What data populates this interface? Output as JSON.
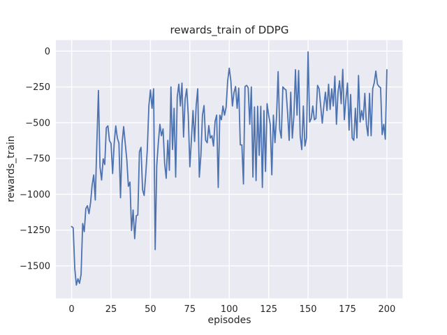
{
  "figure": {
    "background": "#ffffff"
  },
  "chart_data": {
    "type": "line",
    "title": "rewards_train of DDPG",
    "xlabel": "episodes",
    "ylabel": "rewards_train",
    "xlim": [
      -10,
      210
    ],
    "ylim": [
      -1727,
      77
    ],
    "x_ticks": [
      0,
      25,
      50,
      75,
      100,
      125,
      150,
      175,
      200
    ],
    "x_tick_labels": [
      "0",
      "25",
      "50",
      "75",
      "100",
      "125",
      "150",
      "175",
      "200"
    ],
    "y_ticks": [
      0,
      -250,
      -500,
      -750,
      -1000,
      -1250,
      -1500
    ],
    "y_tick_labels": [
      "0",
      "−250",
      "−500",
      "−750",
      "−1000",
      "−1250",
      "−1500"
    ],
    "grid": true,
    "legend": "none",
    "styles": {
      "line_color": "#4C72B0",
      "plot_bg": "#EAEAF2",
      "grid_color": "#ffffff",
      "text_color": "#262626"
    },
    "series": [
      {
        "name": "rewards_train",
        "x_start": 0,
        "x_step": 1,
        "values": [
          -1225,
          -1235,
          -1520,
          -1634,
          -1590,
          -1622,
          -1560,
          -1204,
          -1261,
          -1100,
          -1080,
          -1135,
          -1060,
          -935,
          -865,
          -1040,
          -640,
          -275,
          -808,
          -900,
          -752,
          -792,
          -535,
          -522,
          -625,
          -645,
          -855,
          -643,
          -522,
          -607,
          -643,
          -1024,
          -643,
          -527,
          -643,
          -757,
          -944,
          -915,
          -1253,
          -1110,
          -1310,
          -1150,
          -1144,
          -704,
          -672,
          -968,
          -1008,
          -864,
          -688,
          -383,
          -271,
          -399,
          -263,
          -1386,
          -800,
          -639,
          -511,
          -591,
          -543,
          -784,
          -888,
          -623,
          -832,
          -250,
          -687,
          -399,
          -880,
          -319,
          -231,
          -383,
          -223,
          -600,
          -335,
          -263,
          -447,
          -808,
          -615,
          -415,
          -631,
          -383,
          -263,
          -880,
          -728,
          -447,
          -380,
          -623,
          -640,
          -520,
          -607,
          -591,
          -663,
          -490,
          -447,
          -952,
          -447,
          -479,
          -383,
          -447,
          -391,
          -207,
          -119,
          -207,
          -383,
          -290,
          -247,
          -399,
          -258,
          -655,
          -655,
          -928,
          -247,
          -239,
          -255,
          -511,
          -250,
          -880,
          -390,
          -904,
          -385,
          -728,
          -385,
          -952,
          -415,
          -840,
          -367,
          -447,
          -511,
          -864,
          -447,
          -639,
          -455,
          -143,
          -543,
          -607,
          -250,
          -263,
          -271,
          -430,
          -623,
          -287,
          -607,
          -455,
          -130,
          -447,
          -135,
          -591,
          -688,
          -383,
          -663,
          -607,
          -5,
          -495,
          -471,
          -383,
          -479,
          -470,
          -239,
          -263,
          -383,
          -503,
          -383,
          -287,
          -415,
          -231,
          -407,
          -263,
          -383,
          -175,
          -511,
          -287,
          -207,
          -367,
          -127,
          -479,
          -335,
          -223,
          -551,
          -303,
          -607,
          -623,
          -399,
          -607,
          -170,
          -495,
          -415,
          -479,
          -295,
          -511,
          -591,
          -295,
          -591,
          -263,
          -220,
          -139,
          -231,
          -247,
          -255,
          -583,
          -511,
          -615,
          -130
        ]
      }
    ]
  }
}
